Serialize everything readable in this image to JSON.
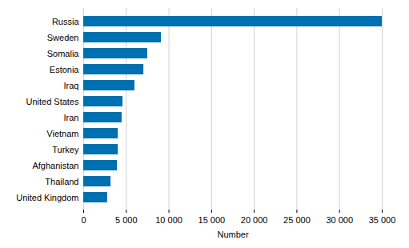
{
  "chart_data": {
    "type": "bar",
    "orientation": "horizontal",
    "categories": [
      "Russia",
      "Sweden",
      "Somalia",
      "Estonia",
      "Iraq",
      "United States",
      "Iran",
      "Vietnam",
      "Turkey",
      "Afghanistan",
      "Thailand",
      "United Kingdom"
    ],
    "values": [
      35000,
      9100,
      7500,
      7050,
      6000,
      4600,
      4500,
      4050,
      4050,
      3950,
      3200,
      2800
    ],
    "color": "#0070b0",
    "x_label": "Number",
    "xlim": [
      0,
      35000
    ],
    "xticks": [
      0,
      {
        "value": 5000,
        "label": "5 000"
      },
      {
        "value": 10000,
        "label": "10 000"
      },
      {
        "value": 15000,
        "label": "15 000"
      },
      {
        "value": 20000,
        "label": "20 000"
      },
      {
        "value": 25000,
        "label": "25 000"
      },
      {
        "value": 30000,
        "label": "30 000"
      },
      {
        "value": 35000,
        "label": "35 000"
      }
    ],
    "grid": true
  }
}
